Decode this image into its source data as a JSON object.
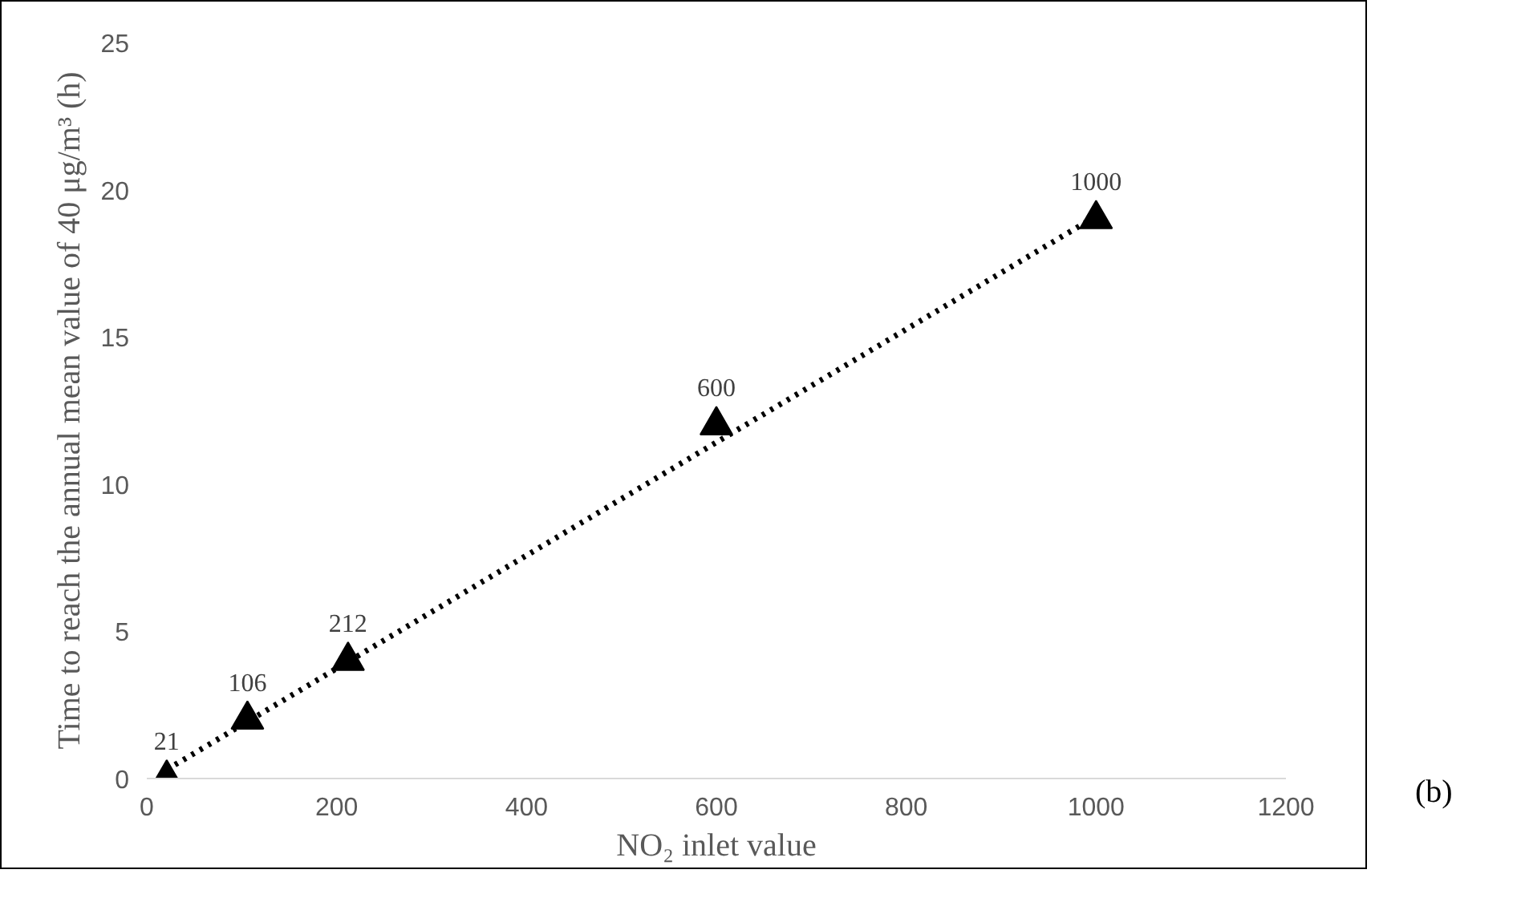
{
  "chart_data": {
    "type": "scatter",
    "xlabel": "NO₂ inlet value",
    "ylabel": "Time to reach the annual mean value of 40 μg/m³ (h)",
    "xlim": [
      0,
      1200
    ],
    "xticks": [
      0,
      200,
      400,
      600,
      800,
      1000,
      1200
    ],
    "ylim": [
      0,
      25
    ],
    "yticks": [
      0,
      5,
      10,
      15,
      20,
      25
    ],
    "grid": false,
    "annotations": [
      {
        "text": "21",
        "x": 21,
        "y": 0
      },
      {
        "text": "106",
        "x": 106,
        "y": 2
      },
      {
        "text": "212",
        "x": 212,
        "y": 4
      },
      {
        "text": "600",
        "x": 600,
        "y": 12
      },
      {
        "text": "1000",
        "x": 1000,
        "y": 19
      },
      "(b)"
    ],
    "series": [
      {
        "marker": "triangle",
        "color": "#000000",
        "x": [
          21,
          106,
          212,
          600,
          1000
        ],
        "values": [
          0,
          2,
          4,
          12,
          19
        ]
      },
      {
        "type": "line",
        "line_style": "dotted",
        "marker": "none",
        "color": "#000000",
        "x": [
          21,
          1000
        ],
        "values": [
          0.3,
          19.1
        ]
      }
    ]
  }
}
